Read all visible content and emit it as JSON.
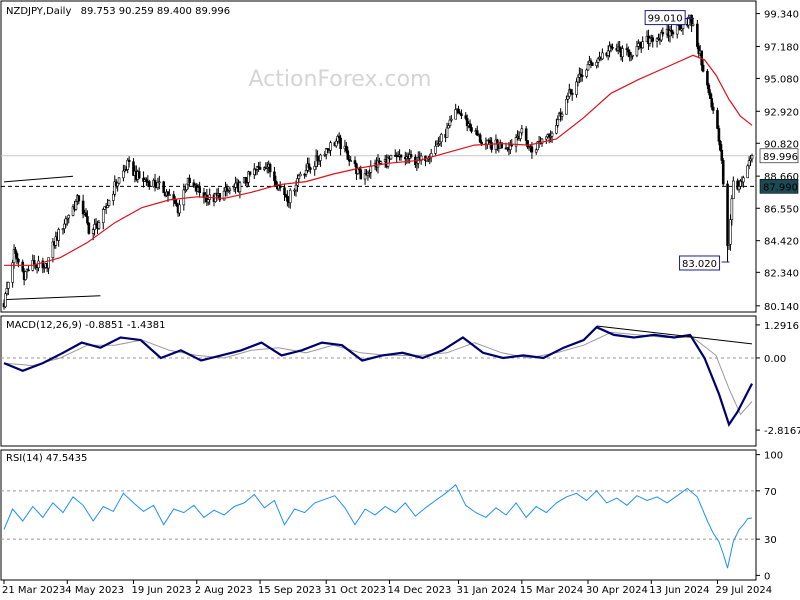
{
  "chart_data": {
    "type": "candlestick",
    "main_panel": {
      "title": "NZDJPY,Daily",
      "ohlc": "89.753 90.259 89.400 89.996",
      "watermark": "ActionForex.com",
      "y_ticks": [
        "99.340",
        "97.180",
        "95.080",
        "92.920",
        "90.820",
        "88.660",
        "86.550",
        "84.420",
        "82.340",
        "80.140"
      ],
      "y_tick_values": [
        99.34,
        97.18,
        95.08,
        92.92,
        90.82,
        88.66,
        86.55,
        84.42,
        82.34,
        80.14
      ],
      "ylim": [
        79.8,
        100.1
      ],
      "current_price": 89.996,
      "current_price_label": "89.996",
      "support_level": 87.99,
      "support_label": "87.990",
      "annotations": [
        {
          "text": "99.010",
          "value": 99.01,
          "date": "2024-07-10"
        },
        {
          "text": "83.020",
          "value": 83.02,
          "date": "2024-08-05"
        }
      ],
      "series": [
        {
          "type": "candles",
          "color": "#000000"
        },
        {
          "type": "sma",
          "color": "#e0101a"
        }
      ],
      "trendlines": [
        {
          "from": [
            "2023-03-21",
            88.28
          ],
          "to": [
            "2023-05-08",
            88.65
          ]
        },
        {
          "from": [
            "2023-03-21",
            80.55
          ],
          "to": [
            "2023-05-27",
            80.8
          ]
        }
      ],
      "price_path": [
        [
          "2023-03-21",
          80.3
        ],
        [
          "2023-03-28",
          83.6
        ],
        [
          "2023-04-04",
          82.2
        ],
        [
          "2023-04-11",
          83.0
        ],
        [
          "2023-04-18",
          82.4
        ],
        [
          "2023-04-25",
          84.3
        ],
        [
          "2023-05-04",
          86.0
        ],
        [
          "2023-05-12",
          87.2
        ],
        [
          "2023-05-20",
          84.9
        ],
        [
          "2023-05-28",
          85.9
        ],
        [
          "2023-06-06",
          88.0
        ],
        [
          "2023-06-15",
          89.4
        ],
        [
          "2023-06-24",
          88.4
        ],
        [
          "2023-07-02",
          88.3
        ],
        [
          "2023-07-12",
          87.6
        ],
        [
          "2023-07-20",
          86.5
        ],
        [
          "2023-07-26",
          88.3
        ],
        [
          "2023-08-04",
          87.6
        ],
        [
          "2023-08-12",
          87.1
        ],
        [
          "2023-08-22",
          87.6
        ],
        [
          "2023-09-01",
          88.0
        ],
        [
          "2023-09-10",
          88.9
        ],
        [
          "2023-09-19",
          89.5
        ],
        [
          "2023-09-28",
          88.0
        ],
        [
          "2023-10-05",
          87.2
        ],
        [
          "2023-10-13",
          88.9
        ],
        [
          "2023-10-22",
          89.4
        ],
        [
          "2023-10-30",
          90.4
        ],
        [
          "2023-11-08",
          91.0
        ],
        [
          "2023-11-18",
          89.6
        ],
        [
          "2023-11-24",
          88.6
        ],
        [
          "2023-12-04",
          89.4
        ],
        [
          "2023-12-14",
          89.7
        ],
        [
          "2023-12-24",
          89.9
        ],
        [
          "2024-01-04",
          89.6
        ],
        [
          "2024-01-15",
          90.6
        ],
        [
          "2024-01-23",
          91.6
        ],
        [
          "2024-01-30",
          93.0
        ],
        [
          "2024-02-09",
          91.8
        ],
        [
          "2024-02-18",
          90.7
        ],
        [
          "2024-02-28",
          90.7
        ],
        [
          "2024-03-07",
          90.7
        ],
        [
          "2024-03-14",
          91.6
        ],
        [
          "2024-03-22",
          90.3
        ],
        [
          "2024-03-31",
          91.3
        ],
        [
          "2024-04-06",
          91.7
        ],
        [
          "2024-04-14",
          93.5
        ],
        [
          "2024-04-22",
          94.8
        ],
        [
          "2024-04-30",
          95.9
        ],
        [
          "2024-05-10",
          96.6
        ],
        [
          "2024-05-18",
          97.1
        ],
        [
          "2024-05-26",
          96.6
        ],
        [
          "2024-06-06",
          97.2
        ],
        [
          "2024-06-13",
          97.8
        ],
        [
          "2024-06-21",
          97.8
        ],
        [
          "2024-07-01",
          98.4
        ],
        [
          "2024-07-10",
          99.01
        ],
        [
          "2024-07-14",
          97.7
        ],
        [
          "2024-07-19",
          95.8
        ],
        [
          "2024-07-25",
          93.2
        ],
        [
          "2024-07-29",
          91.6
        ],
        [
          "2024-08-01",
          89.9
        ],
        [
          "2024-08-05",
          83.02
        ],
        [
          "2024-08-09",
          88.3
        ],
        [
          "2024-08-14",
          88.0
        ],
        [
          "2024-08-19",
          89.1
        ],
        [
          "2024-08-22",
          89.996
        ]
      ],
      "sma_path": [
        [
          "2023-03-21",
          82.8
        ],
        [
          "2023-04-10",
          82.8
        ],
        [
          "2023-04-29",
          83.3
        ],
        [
          "2023-05-18",
          84.3
        ],
        [
          "2023-06-06",
          85.6
        ],
        [
          "2023-06-25",
          86.6
        ],
        [
          "2023-07-14",
          87.1
        ],
        [
          "2023-08-02",
          87.3
        ],
        [
          "2023-08-21",
          87.2
        ],
        [
          "2023-09-09",
          87.6
        ],
        [
          "2023-09-28",
          88.1
        ],
        [
          "2023-10-17",
          88.3
        ],
        [
          "2023-11-05",
          88.8
        ],
        [
          "2023-11-24",
          89.2
        ],
        [
          "2023-12-13",
          89.5
        ],
        [
          "2024-01-04",
          89.7
        ],
        [
          "2024-01-23",
          90.2
        ],
        [
          "2024-02-11",
          90.7
        ],
        [
          "2024-03-01",
          90.8
        ],
        [
          "2024-03-20",
          90.7
        ],
        [
          "2024-04-08",
          91.1
        ],
        [
          "2024-04-27",
          92.5
        ],
        [
          "2024-05-16",
          94.1
        ],
        [
          "2024-06-04",
          95.0
        ],
        [
          "2024-06-23",
          95.8
        ],
        [
          "2024-07-12",
          96.6
        ],
        [
          "2024-07-20",
          96.3
        ],
        [
          "2024-07-28",
          95.3
        ],
        [
          "2024-08-06",
          93.7
        ],
        [
          "2024-08-14",
          92.6
        ],
        [
          "2024-08-22",
          92.0
        ]
      ]
    },
    "macd_panel": {
      "title": "MACD(12,26,9) -0.8851 -1.4381",
      "y_ticks": [
        "1.2916",
        "0.00",
        "-2.8167"
      ],
      "y_tick_values": [
        1.2916,
        0.0,
        -2.8167
      ],
      "ylim": [
        -3.4,
        1.6
      ],
      "series": [
        {
          "name": "MACD",
          "color": "#00006e"
        },
        {
          "name": "Signal",
          "color": "#9a9a9a"
        }
      ],
      "macd_path": [
        [
          "2023-03-21",
          -0.2
        ],
        [
          "2023-04-03",
          -0.5
        ],
        [
          "2023-04-17",
          -0.2
        ],
        [
          "2023-05-01",
          0.2
        ],
        [
          "2023-05-14",
          0.6
        ],
        [
          "2023-05-27",
          0.4
        ],
        [
          "2023-06-10",
          0.8
        ],
        [
          "2023-06-24",
          0.7
        ],
        [
          "2023-07-08",
          0.0
        ],
        [
          "2023-07-22",
          0.3
        ],
        [
          "2023-08-05",
          -0.1
        ],
        [
          "2023-08-19",
          0.1
        ],
        [
          "2023-09-02",
          0.3
        ],
        [
          "2023-09-16",
          0.6
        ],
        [
          "2023-09-30",
          0.1
        ],
        [
          "2023-10-14",
          0.3
        ],
        [
          "2023-10-28",
          0.6
        ],
        [
          "2023-11-11",
          0.5
        ],
        [
          "2023-11-25",
          -0.1
        ],
        [
          "2023-12-09",
          0.1
        ],
        [
          "2023-12-23",
          0.2
        ],
        [
          "2024-01-06",
          0.0
        ],
        [
          "2024-01-20",
          0.3
        ],
        [
          "2024-02-03",
          0.8
        ],
        [
          "2024-02-17",
          0.2
        ],
        [
          "2024-03-02",
          0.0
        ],
        [
          "2024-03-16",
          0.1
        ],
        [
          "2024-03-30",
          0.0
        ],
        [
          "2024-04-13",
          0.4
        ],
        [
          "2024-04-27",
          0.7
        ],
        [
          "2024-05-06",
          1.2
        ],
        [
          "2024-05-18",
          0.9
        ],
        [
          "2024-06-01",
          0.8
        ],
        [
          "2024-06-15",
          0.9
        ],
        [
          "2024-06-29",
          0.8
        ],
        [
          "2024-07-10",
          0.9
        ],
        [
          "2024-07-20",
          0.0
        ],
        [
          "2024-07-30",
          -1.4
        ],
        [
          "2024-08-06",
          -2.6
        ],
        [
          "2024-08-12",
          -2.1
        ],
        [
          "2024-08-22",
          -1.0
        ]
      ],
      "signal_path": [
        [
          "2023-03-21",
          -0.2
        ],
        [
          "2023-04-10",
          -0.3
        ],
        [
          "2023-04-29",
          0.0
        ],
        [
          "2023-05-18",
          0.5
        ],
        [
          "2023-06-06",
          0.5
        ],
        [
          "2023-06-25",
          0.7
        ],
        [
          "2023-07-14",
          0.3
        ],
        [
          "2023-08-02",
          0.1
        ],
        [
          "2023-08-21",
          0.0
        ],
        [
          "2023-09-09",
          0.3
        ],
        [
          "2023-09-28",
          0.4
        ],
        [
          "2023-10-17",
          0.2
        ],
        [
          "2023-11-05",
          0.5
        ],
        [
          "2023-11-24",
          0.2
        ],
        [
          "2023-12-13",
          0.1
        ],
        [
          "2024-01-04",
          0.1
        ],
        [
          "2024-01-23",
          0.2
        ],
        [
          "2024-02-11",
          0.6
        ],
        [
          "2024-03-01",
          0.2
        ],
        [
          "2024-03-20",
          0.0
        ],
        [
          "2024-04-08",
          0.2
        ],
        [
          "2024-04-27",
          0.5
        ],
        [
          "2024-05-16",
          1.0
        ],
        [
          "2024-06-04",
          0.9
        ],
        [
          "2024-06-23",
          0.8
        ],
        [
          "2024-07-12",
          0.8
        ],
        [
          "2024-07-28",
          0.1
        ],
        [
          "2024-08-06",
          -1.2
        ],
        [
          "2024-08-14",
          -2.2
        ],
        [
          "2024-08-22",
          -1.7
        ]
      ],
      "trendline": {
        "from": [
          "2024-05-06",
          1.25
        ],
        "to": [
          "2024-08-22",
          0.55
        ]
      }
    },
    "rsi_panel": {
      "title": "RSI(14) 47.5435",
      "y_ticks": [
        "100",
        "70",
        "30",
        "0"
      ],
      "y_tick_values": [
        100,
        70,
        30,
        0
      ],
      "ylim": [
        -3,
        103
      ],
      "levels": [
        70,
        30
      ],
      "series": [
        {
          "name": "RSI",
          "color": "#1e90ff"
        }
      ],
      "rsi_path": [
        [
          "2023-03-21",
          38
        ],
        [
          "2023-03-27",
          55
        ],
        [
          "2023-04-03",
          45
        ],
        [
          "2023-04-10",
          57
        ],
        [
          "2023-04-17",
          48
        ],
        [
          "2023-04-24",
          60
        ],
        [
          "2023-05-01",
          52
        ],
        [
          "2023-05-08",
          65
        ],
        [
          "2023-05-15",
          58
        ],
        [
          "2023-05-22",
          45
        ],
        [
          "2023-05-29",
          57
        ],
        [
          "2023-06-05",
          53
        ],
        [
          "2023-06-12",
          68
        ],
        [
          "2023-06-19",
          60
        ],
        [
          "2023-06-26",
          53
        ],
        [
          "2023-07-03",
          58
        ],
        [
          "2023-07-10",
          42
        ],
        [
          "2023-07-17",
          55
        ],
        [
          "2023-07-24",
          52
        ],
        [
          "2023-07-31",
          58
        ],
        [
          "2023-08-07",
          48
        ],
        [
          "2023-08-14",
          54
        ],
        [
          "2023-08-21",
          50
        ],
        [
          "2023-08-28",
          57
        ],
        [
          "2023-09-04",
          60
        ],
        [
          "2023-09-11",
          67
        ],
        [
          "2023-09-18",
          56
        ],
        [
          "2023-09-25",
          62
        ],
        [
          "2023-10-02",
          42
        ],
        [
          "2023-10-09",
          55
        ],
        [
          "2023-10-16",
          52
        ],
        [
          "2023-10-23",
          60
        ],
        [
          "2023-10-30",
          63
        ],
        [
          "2023-11-06",
          66
        ],
        [
          "2023-11-13",
          56
        ],
        [
          "2023-11-20",
          42
        ],
        [
          "2023-11-27",
          55
        ],
        [
          "2023-12-04",
          50
        ],
        [
          "2023-12-11",
          57
        ],
        [
          "2023-12-18",
          52
        ],
        [
          "2023-12-25",
          60
        ],
        [
          "2024-01-01",
          49
        ],
        [
          "2024-01-08",
          56
        ],
        [
          "2024-01-15",
          62
        ],
        [
          "2024-01-22",
          68
        ],
        [
          "2024-01-29",
          75
        ],
        [
          "2024-02-05",
          58
        ],
        [
          "2024-02-12",
          52
        ],
        [
          "2024-02-19",
          48
        ],
        [
          "2024-02-26",
          56
        ],
        [
          "2024-03-04",
          50
        ],
        [
          "2024-03-11",
          60
        ],
        [
          "2024-03-18",
          48
        ],
        [
          "2024-03-25",
          57
        ],
        [
          "2024-04-01",
          52
        ],
        [
          "2024-04-08",
          60
        ],
        [
          "2024-04-15",
          65
        ],
        [
          "2024-04-22",
          68
        ],
        [
          "2024-04-29",
          62
        ],
        [
          "2024-05-06",
          70
        ],
        [
          "2024-05-13",
          60
        ],
        [
          "2024-05-20",
          64
        ],
        [
          "2024-05-27",
          58
        ],
        [
          "2024-06-03",
          66
        ],
        [
          "2024-06-10",
          62
        ],
        [
          "2024-06-17",
          65
        ],
        [
          "2024-06-24",
          60
        ],
        [
          "2024-07-01",
          66
        ],
        [
          "2024-07-08",
          72
        ],
        [
          "2024-07-15",
          65
        ],
        [
          "2024-07-22",
          45
        ],
        [
          "2024-07-26",
          35
        ],
        [
          "2024-07-30",
          28
        ],
        [
          "2024-08-02",
          18
        ],
        [
          "2024-08-05",
          6
        ],
        [
          "2024-08-09",
          28
        ],
        [
          "2024-08-13",
          38
        ],
        [
          "2024-08-16",
          42
        ],
        [
          "2024-08-19",
          47
        ],
        [
          "2024-08-22",
          47.5
        ]
      ]
    },
    "x_axis": {
      "labels": [
        "21 Mar 2023",
        "4 May 2023",
        "19 Jun 2023",
        "2 Aug 2023",
        "15 Sep 2023",
        "31 Oct 2023",
        "14 Dec 2023",
        "31 Jan 2024",
        "15 Mar 2024",
        "30 Apr 2024",
        "13 Jun 2024",
        "29 Jul 2024"
      ],
      "dates": [
        "2023-03-21",
        "2023-05-04",
        "2023-06-19",
        "2023-08-02",
        "2023-09-15",
        "2023-10-31",
        "2023-12-14",
        "2024-01-31",
        "2024-03-15",
        "2024-04-30",
        "2024-06-13",
        "2024-07-29"
      ],
      "range": [
        "2023-03-21",
        "2024-08-22"
      ]
    }
  }
}
